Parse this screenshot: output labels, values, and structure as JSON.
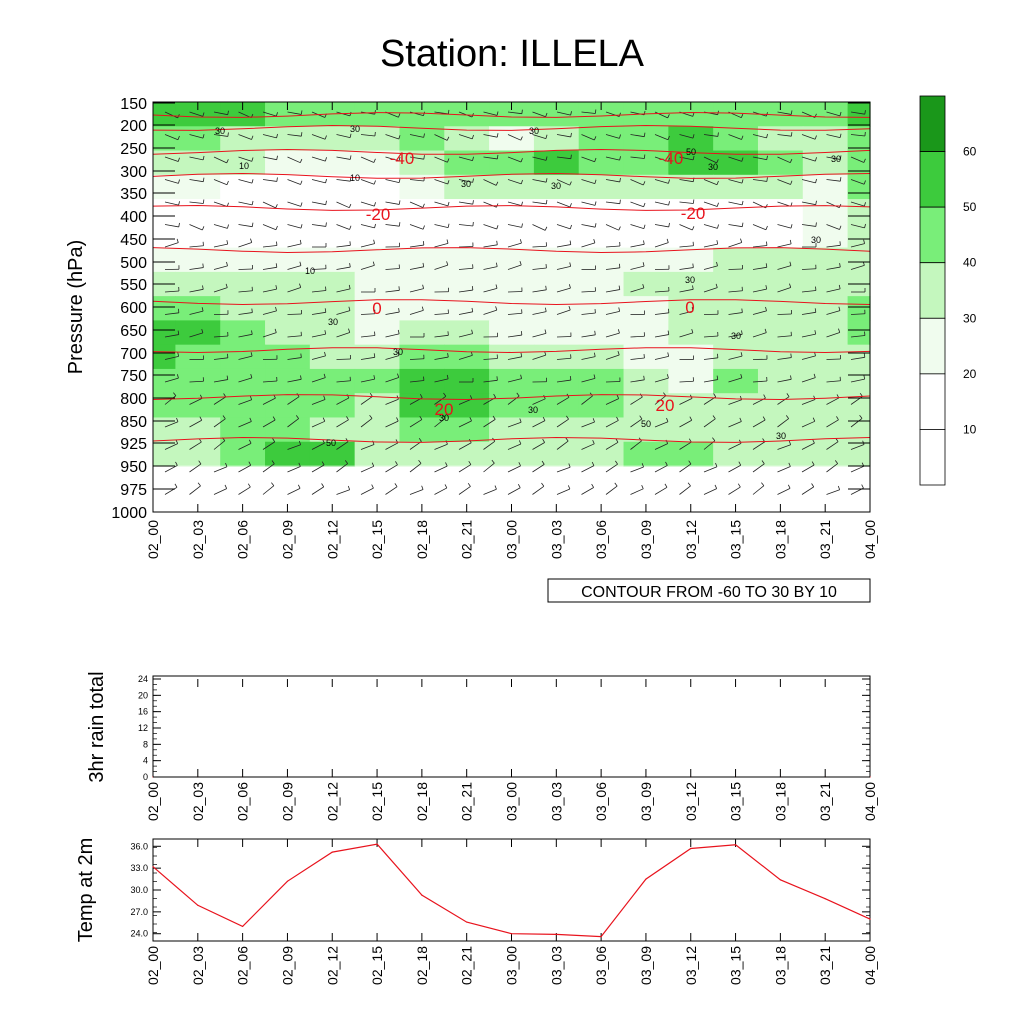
{
  "title": "Station: ILLELA",
  "colors": {
    "temp_contour": "#e8131d",
    "temp_label": "#e8131d",
    "fill_levels": [
      "#ffffff",
      "#ffffff",
      "#f0fcee",
      "#c4f7be",
      "#79ee79",
      "#3dcb3d",
      "#1a971a"
    ]
  },
  "chart_data": [
    {
      "type": "heatmap",
      "name": "pressure-time cross section",
      "ylabel": "Pressure (hPa)",
      "yticks": [
        "150",
        "200",
        "250",
        "300",
        "350",
        "400",
        "450",
        "500",
        "550",
        "600",
        "650",
        "700",
        "750",
        "800",
        "850",
        "925",
        "950",
        "975",
        "1000"
      ],
      "xticks": [
        "02_00",
        "02_03",
        "02_06",
        "02_09",
        "02_12",
        "02_15",
        "02_18",
        "02_21",
        "03_00",
        "03_03",
        "03_06",
        "03_09",
        "03_12",
        "03_15",
        "03_18",
        "03_21",
        "04_00"
      ],
      "colorbar": {
        "levels": [
          10,
          20,
          30,
          40,
          50,
          60
        ],
        "labels": [
          "10",
          "20",
          "30",
          "40",
          "50",
          "60"
        ]
      },
      "fill_rows": [
        [
          50,
          50,
          50,
          40,
          40,
          40,
          40,
          40,
          40,
          40,
          40,
          40,
          40,
          40,
          40,
          40,
          50
        ],
        [
          40,
          40,
          30,
          30,
          30,
          30,
          40,
          30,
          20,
          30,
          40,
          40,
          50,
          40,
          30,
          30,
          40
        ],
        [
          30,
          30,
          30,
          20,
          20,
          20,
          30,
          40,
          40,
          50,
          40,
          40,
          50,
          50,
          40,
          30,
          40
        ],
        [
          20,
          20,
          10,
          10,
          10,
          10,
          20,
          30,
          30,
          30,
          30,
          30,
          30,
          30,
          30,
          20,
          40
        ],
        [
          10,
          10,
          10,
          10,
          10,
          10,
          10,
          10,
          10,
          10,
          10,
          10,
          10,
          10,
          10,
          20,
          30
        ],
        [
          10,
          10,
          10,
          10,
          10,
          10,
          10,
          10,
          10,
          10,
          10,
          10,
          10,
          10,
          10,
          20,
          30
        ],
        [
          20,
          20,
          20,
          20,
          20,
          20,
          20,
          20,
          20,
          20,
          20,
          20,
          20,
          30,
          30,
          30,
          30
        ],
        [
          30,
          30,
          30,
          30,
          30,
          20,
          20,
          20,
          20,
          20,
          20,
          30,
          30,
          30,
          30,
          30,
          30
        ],
        [
          40,
          40,
          30,
          30,
          30,
          20,
          20,
          20,
          20,
          20,
          20,
          20,
          30,
          30,
          30,
          30,
          40
        ],
        [
          50,
          50,
          40,
          30,
          30,
          20,
          30,
          30,
          20,
          20,
          20,
          20,
          30,
          30,
          30,
          30,
          40
        ],
        [
          50,
          40,
          40,
          40,
          30,
          30,
          40,
          40,
          30,
          30,
          30,
          20,
          20,
          30,
          30,
          30,
          30
        ],
        [
          40,
          40,
          40,
          40,
          40,
          40,
          50,
          50,
          40,
          40,
          40,
          30,
          20,
          40,
          30,
          30,
          30
        ],
        [
          40,
          40,
          40,
          40,
          40,
          30,
          50,
          50,
          40,
          40,
          40,
          30,
          30,
          30,
          30,
          30,
          30
        ],
        [
          30,
          30,
          40,
          40,
          30,
          30,
          40,
          40,
          30,
          30,
          30,
          30,
          30,
          30,
          30,
          30,
          30
        ],
        [
          30,
          30,
          40,
          50,
          50,
          30,
          30,
          30,
          30,
          30,
          30,
          40,
          40,
          30,
          30,
          30,
          30
        ]
      ],
      "temp_contours": [
        {
          "level": -40,
          "labels": [
            "-40",
            "-40"
          ]
        },
        {
          "level": -20,
          "labels": [
            "-20",
            "-20"
          ]
        },
        {
          "level": 0,
          "labels": [
            "0",
            "0"
          ]
        },
        {
          "level": 20,
          "labels": [
            "20",
            "20"
          ]
        }
      ],
      "contour_labels": [
        "30",
        "30",
        "30",
        "10",
        "10",
        "30",
        "30",
        "50",
        "30",
        "30",
        "30",
        "10",
        "30",
        "30",
        "30",
        "30",
        "30",
        "50",
        "30",
        "30",
        "50"
      ],
      "info_label": "CONTOUR FROM -60 TO 30 BY 10"
    },
    {
      "type": "line",
      "name": "3hr rain total",
      "ylabel": "3hr rain total",
      "ylim": [
        0,
        24
      ],
      "yticks": [
        "0",
        "4",
        "8",
        "12",
        "16",
        "20",
        "24"
      ],
      "xticks": [
        "02_00",
        "02_03",
        "02_06",
        "02_09",
        "02_12",
        "02_15",
        "02_18",
        "02_21",
        "03_00",
        "03_03",
        "03_06",
        "03_09",
        "03_12",
        "03_15",
        "03_18",
        "03_21",
        "04_00"
      ],
      "values": [
        0,
        0,
        0,
        0,
        0,
        0,
        0,
        0,
        0,
        0,
        0,
        0,
        0,
        0,
        0,
        0,
        0
      ]
    },
    {
      "type": "line",
      "name": "Temp at 2m",
      "ylabel": "Temp at 2m",
      "ylim": [
        23.0,
        37.0
      ],
      "yticks": [
        "24.0",
        "27.0",
        "30.0",
        "33.0",
        "36.0"
      ],
      "xticks": [
        "02_00",
        "02_03",
        "02_06",
        "02_09",
        "02_12",
        "02_15",
        "02_18",
        "02_21",
        "03_00",
        "03_03",
        "03_06",
        "03_09",
        "03_12",
        "03_15",
        "03_18",
        "03_21",
        "04_00"
      ],
      "values": [
        33.2,
        27.9,
        25.0,
        31.2,
        35.2,
        36.3,
        29.3,
        25.6,
        24.0,
        23.9,
        23.6,
        31.5,
        35.7,
        36.2,
        31.4,
        28.8,
        26.0
      ]
    }
  ]
}
